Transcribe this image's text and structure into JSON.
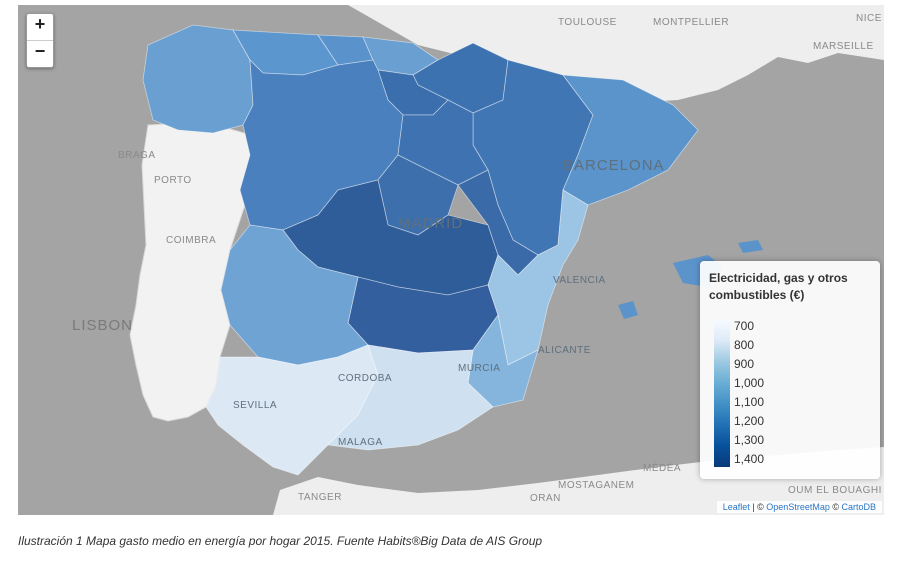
{
  "zoom": {
    "in_label": "+",
    "out_label": "−"
  },
  "cities": {
    "toulouse": "TOULOUSE",
    "montpellier": "MONTPELLIER",
    "nice": "NICE",
    "marseille": "MARSEILLE",
    "braga": "BRAGA",
    "porto": "PORTO",
    "coimbra": "COIMBRA",
    "lisbon": "LISBON",
    "madrid": "MADRID",
    "barcelona": "BARCELONA",
    "valencia": "VALENCIA",
    "alicante": "ALICANTE",
    "murcia": "MURCIA",
    "cordoba": "CORDOBA",
    "sevilla": "SEVILLA",
    "malaga": "MALAGA",
    "tanger": "TANGER",
    "oran": "ORAN",
    "mostaganem": "MOSTAGANEM",
    "medea": "MÉDÉA",
    "bouaghi": "OUM EL BOUAGHI"
  },
  "legend": {
    "title": "Electricidad, gas y otros combustibles (€)",
    "ticks": [
      "700",
      "800",
      "900",
      "1,000",
      "1,100",
      "1,200",
      "1,300",
      "1,400"
    ],
    "colors": [
      "#f7fbff",
      "#deebf7",
      "#9ecae1",
      "#6baed6",
      "#4292c6",
      "#2171b5",
      "#08519c",
      "#083a7a"
    ]
  },
  "attribution": {
    "leaflet": "Leaflet",
    "sep": " | © ",
    "osm": "OpenStreetMap",
    "sep2": " © ",
    "carto": "CartoDB"
  },
  "caption": "Ilustración 1 Mapa gasto medio en energía por hogar 2015. Fuente Habits®Big Data de AIS Group",
  "colors": {
    "sea": "#a4a4a4",
    "land": "#f0f0f0"
  }
}
